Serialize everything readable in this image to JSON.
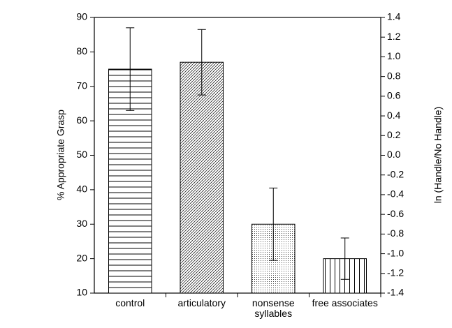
{
  "chart_data": {
    "type": "bar",
    "ylabel": "% Appropriate Grasp",
    "y2label": "ln (Handle/No Handle)",
    "categories": [
      "control",
      "articulatory",
      "nonsense syllables",
      "free associates"
    ],
    "values": [
      75,
      77,
      30,
      20
    ],
    "errors": [
      12,
      9.5,
      10.5,
      6
    ],
    "patterns": [
      "horizontal",
      "diagonal",
      "dots",
      "vertical"
    ],
    "color": "#000000",
    "ylim": [
      10,
      90
    ],
    "yticks": [
      10,
      20,
      30,
      40,
      50,
      60,
      70,
      80,
      90
    ],
    "y2lim": [
      -1.4,
      1.4
    ],
    "y2ticks": [
      -1.4,
      -1.2,
      {
        "value": -1,
        "label": "-1.0"
      },
      -0.8,
      -0.6,
      -0.4,
      -0.2,
      {
        "value": 0,
        "label": "0.0"
      },
      0.2,
      0.4,
      0.6,
      0.8,
      {
        "value": 1,
        "label": "1.0"
      },
      1.2,
      1.4
    ],
    "grid": false
  }
}
